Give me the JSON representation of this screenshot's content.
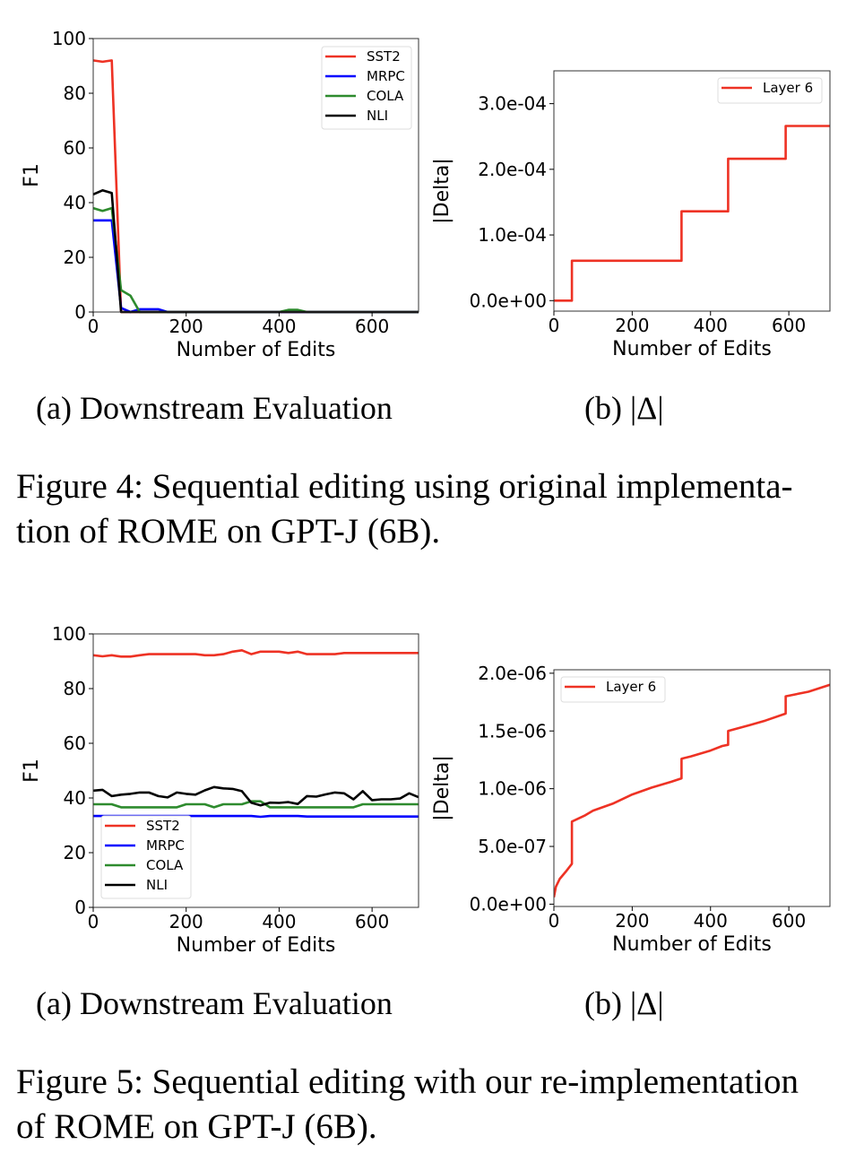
{
  "figure4": {
    "subcaption_a": "(a) Downstream Evaluation",
    "subcaption_b": "(b) |Δ|",
    "caption_line1": "Figure 4: Sequential editing using original implementa-",
    "caption_line2": "tion of ROME on GPT-J (6B)."
  },
  "figure5": {
    "subcaption_a": "(a) Downstream Evaluation",
    "subcaption_b": "(b) |Δ|",
    "caption_line1": "Figure 5: Sequential editing with our re-implementation",
    "caption_line2": "of ROME on GPT-J (6B)."
  },
  "chart_data": [
    {
      "type": "line",
      "xlabel": "Number of Edits",
      "ylabel": "F1",
      "xlim": [
        0,
        700
      ],
      "ylim": [
        0,
        100
      ],
      "xticks": [
        0,
        200,
        400,
        600
      ],
      "xtick_labels": [
        "0",
        "200",
        "400",
        "600"
      ],
      "yticks": [
        0,
        20,
        40,
        60,
        80,
        100
      ],
      "ytick_labels": [
        "0",
        "20",
        "40",
        "60",
        "80",
        "100"
      ],
      "legend": "top-right",
      "grid": false,
      "series": [
        {
          "name": "SST2",
          "color": "#ee3224",
          "x": [
            0,
            20,
            40,
            60,
            700
          ],
          "y": [
            92,
            91.5,
            92,
            0,
            0
          ]
        },
        {
          "name": "MRPC",
          "color": "#0000ff",
          "x": [
            0,
            20,
            40,
            60,
            80,
            100,
            140,
            160,
            700
          ],
          "y": [
            33.5,
            33.5,
            33.5,
            1.5,
            0,
            1,
            1,
            0,
            0
          ]
        },
        {
          "name": "COLA",
          "color": "#2e8b2e",
          "x": [
            0,
            20,
            40,
            60,
            80,
            100,
            400,
            420,
            440,
            460,
            700
          ],
          "y": [
            38,
            37,
            38,
            8,
            6,
            0,
            0,
            0.8,
            0.8,
            0,
            0
          ]
        },
        {
          "name": "NLI",
          "color": "#000000",
          "x": [
            0,
            20,
            40,
            60,
            700
          ],
          "y": [
            43,
            44.5,
            43.5,
            0,
            0
          ]
        }
      ]
    },
    {
      "type": "line",
      "xlabel": "Number of Edits",
      "ylabel": "|Delta|",
      "xlim": [
        0,
        705
      ],
      "ylim": [
        -1.6e-05,
        0.00035
      ],
      "xticks": [
        0,
        200,
        400,
        600
      ],
      "xtick_labels": [
        "0",
        "200",
        "400",
        "600"
      ],
      "yticks": [
        0,
        0.0001,
        0.0002,
        0.0003
      ],
      "ytick_labels": [
        "0.0e+00",
        "1.0e-04",
        "2.0e-04",
        "3.0e-04"
      ],
      "legend": "top-right",
      "grid": false,
      "series": [
        {
          "name": "Layer 6",
          "color": "#ee3224",
          "x": [
            0,
            46,
            46,
            326,
            326,
            445,
            445,
            592,
            592,
            705
          ],
          "y": [
            0,
            0,
            6.07e-05,
            6.07e-05,
            0.000136,
            0.000136,
            0.000216,
            0.000216,
            0.000266,
            0.000266
          ]
        }
      ]
    },
    {
      "type": "line",
      "xlabel": "Number of Edits",
      "ylabel": "F1",
      "xlim": [
        0,
        700
      ],
      "ylim": [
        0,
        100
      ],
      "xticks": [
        0,
        200,
        400,
        600
      ],
      "xtick_labels": [
        "0",
        "200",
        "400",
        "600"
      ],
      "yticks": [
        0,
        20,
        40,
        60,
        80,
        100
      ],
      "ytick_labels": [
        "0",
        "20",
        "40",
        "60",
        "80",
        "100"
      ],
      "legend": "lower-left",
      "grid": false,
      "x": [
        0,
        20,
        40,
        60,
        80,
        100,
        120,
        140,
        160,
        180,
        200,
        220,
        240,
        260,
        280,
        300,
        320,
        340,
        360,
        380,
        400,
        420,
        440,
        460,
        480,
        500,
        520,
        540,
        560,
        580,
        600,
        620,
        640,
        660,
        680,
        700
      ],
      "series": [
        {
          "name": "SST2",
          "color": "#ee3224",
          "y": [
            92.2,
            91.8,
            92.2,
            91.7,
            91.7,
            92.2,
            92.6,
            92.6,
            92.6,
            92.6,
            92.6,
            92.6,
            92.2,
            92.2,
            92.6,
            93.5,
            94,
            92.6,
            93.5,
            93.5,
            93.5,
            93,
            93.5,
            92.6,
            92.6,
            92.6,
            92.6,
            93,
            93,
            93,
            93,
            93,
            93,
            93,
            93,
            93
          ]
        },
        {
          "name": "MRPC",
          "color": "#0000ff",
          "y": [
            33.4,
            33.4,
            33.4,
            33.4,
            33.4,
            33.4,
            33.4,
            33.4,
            33.4,
            33.4,
            33.4,
            33.4,
            33.4,
            33.4,
            33.4,
            33.4,
            33.4,
            33.4,
            33.1,
            33.4,
            33.4,
            33.4,
            33.4,
            33.2,
            33.2,
            33.2,
            33.2,
            33.2,
            33.2,
            33.2,
            33.2,
            33.2,
            33.2,
            33.2,
            33.2,
            33.2
          ]
        },
        {
          "name": "COLA",
          "color": "#2e8b2e",
          "y": [
            37.7,
            37.7,
            37.7,
            36.6,
            36.6,
            36.6,
            36.6,
            36.6,
            36.6,
            36.6,
            37.7,
            37.7,
            37.7,
            36.6,
            37.7,
            37.7,
            37.7,
            38.8,
            38.8,
            36.6,
            36.6,
            36.6,
            36.6,
            36.6,
            36.6,
            36.6,
            36.6,
            36.6,
            36.6,
            37.7,
            37.7,
            37.7,
            37.7,
            37.7,
            37.7,
            37.7
          ]
        },
        {
          "name": "NLI",
          "color": "#000000",
          "y": [
            42.7,
            43,
            40.7,
            41.2,
            41.5,
            42,
            42,
            40.7,
            40.2,
            42,
            41.5,
            41.2,
            42.8,
            44,
            43.5,
            43.3,
            42.5,
            38.3,
            37.3,
            38.3,
            38.2,
            38.5,
            37.8,
            40.7,
            40.5,
            41.3,
            42,
            41.7,
            39.5,
            42.5,
            39.2,
            39.5,
            39.5,
            39.8,
            41.7,
            40.3
          ]
        }
      ]
    },
    {
      "type": "line",
      "xlabel": "Number of Edits",
      "ylabel": "|Delta|",
      "xlim": [
        0,
        705
      ],
      "ylim": [
        -2e-08,
        2.03e-06
      ],
      "xticks": [
        0,
        200,
        400,
        600
      ],
      "xtick_labels": [
        "0",
        "200",
        "400",
        "600"
      ],
      "yticks": [
        0,
        5e-07,
        1e-06,
        1.5e-06,
        2e-06
      ],
      "ytick_labels": [
        "0.0e+00",
        "5.0e-07",
        "1.0e-06",
        "1.5e-06",
        "2.0e-06"
      ],
      "legend": "top-left",
      "grid": false,
      "series": [
        {
          "name": "Layer 6",
          "color": "#ee3224",
          "x": [
            0,
            5,
            15,
            30,
            46,
            46,
            80,
            100,
            150,
            200,
            250,
            300,
            326,
            326,
            350,
            400,
            430,
            445,
            445,
            500,
            540,
            592,
            592,
            650,
            705
          ],
          "y": [
            6e-08,
            1.5e-07,
            2.2e-07,
            2.8e-07,
            3.5e-07,
            7.15e-07,
            7.7e-07,
            8.1e-07,
            8.7e-07,
            9.5e-07,
            1.01e-06,
            1.06e-06,
            1.09e-06,
            1.26e-06,
            1.28e-06,
            1.33e-06,
            1.37e-06,
            1.38e-06,
            1.5e-06,
            1.55e-06,
            1.59e-06,
            1.65e-06,
            1.8e-06,
            1.84e-06,
            1.9e-06
          ]
        }
      ]
    }
  ]
}
